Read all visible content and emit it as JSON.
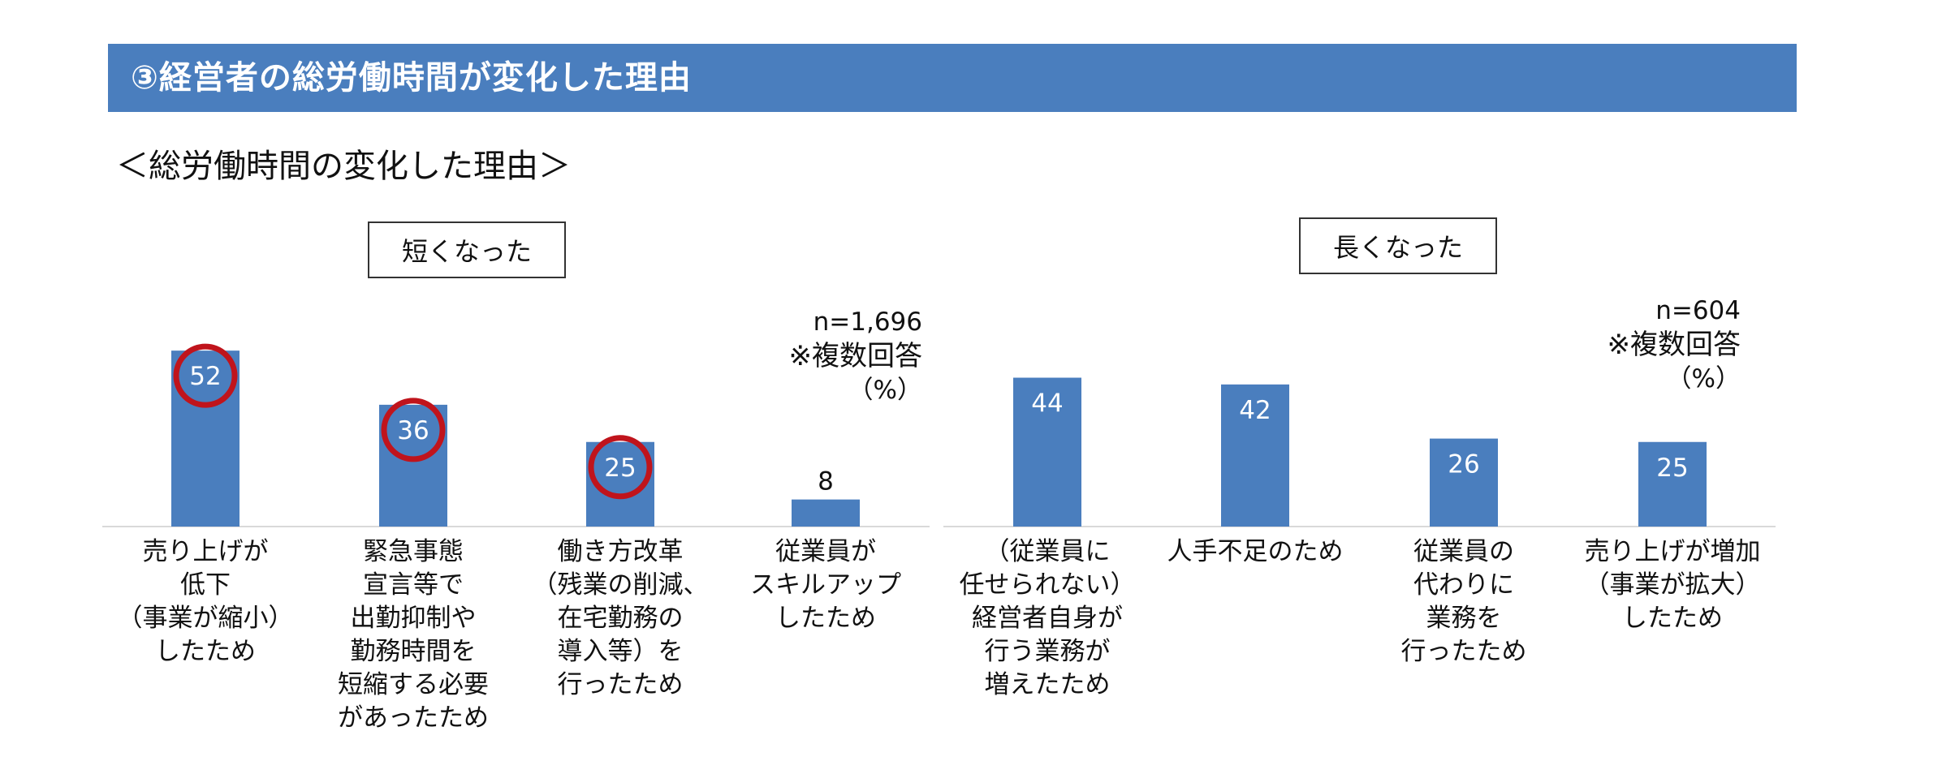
{
  "header": {
    "title": "③経営者の総労働時間が変化した理由"
  },
  "subtitle": "＜総労働時間の変化した理由＞",
  "colors": {
    "header_bg": "#4a7ebe",
    "bar": "#4a7ebe",
    "highlight_circle": "#c0141c",
    "axis": "#d9d9d9"
  },
  "chart_data": [
    {
      "type": "bar",
      "title": "短くなった",
      "n_label": "n=1,696",
      "note": "※複数回答",
      "unit": "（%）",
      "categories": [
        "売り上げが\n低下\n（事業が縮小）\nしたため",
        "緊急事態\n宣言等で\n出勤抑制や\n勤務時間を\n短縮する必要\nがあったため",
        "働き方改革\n（残業の削減、\n在宅勤務の\n導入等）を\n行ったため",
        "従業員が\nスキルアップ\nしたため"
      ],
      "values": [
        52,
        36,
        25,
        8
      ],
      "value_labels": [
        "52",
        "36",
        "25",
        "8"
      ],
      "highlighted": [
        true,
        true,
        true,
        false
      ],
      "ylim": [
        0,
        60
      ]
    },
    {
      "type": "bar",
      "title": "長くなった",
      "n_label": "n=604",
      "note": "※複数回答",
      "unit": "（%）",
      "categories": [
        "（従業員に\n任せられない）\n経営者自身が\n行う業務が\n増えたため",
        "人手不足のため",
        "従業員の\n代わりに\n業務を\n行ったため",
        "売り上げが増加\n（事業が拡大）\nしたため"
      ],
      "values": [
        44,
        42,
        26,
        25
      ],
      "value_labels": [
        "44",
        "42",
        "26",
        "25"
      ],
      "highlighted": [
        false,
        false,
        false,
        false
      ],
      "ylim": [
        0,
        60
      ]
    }
  ]
}
